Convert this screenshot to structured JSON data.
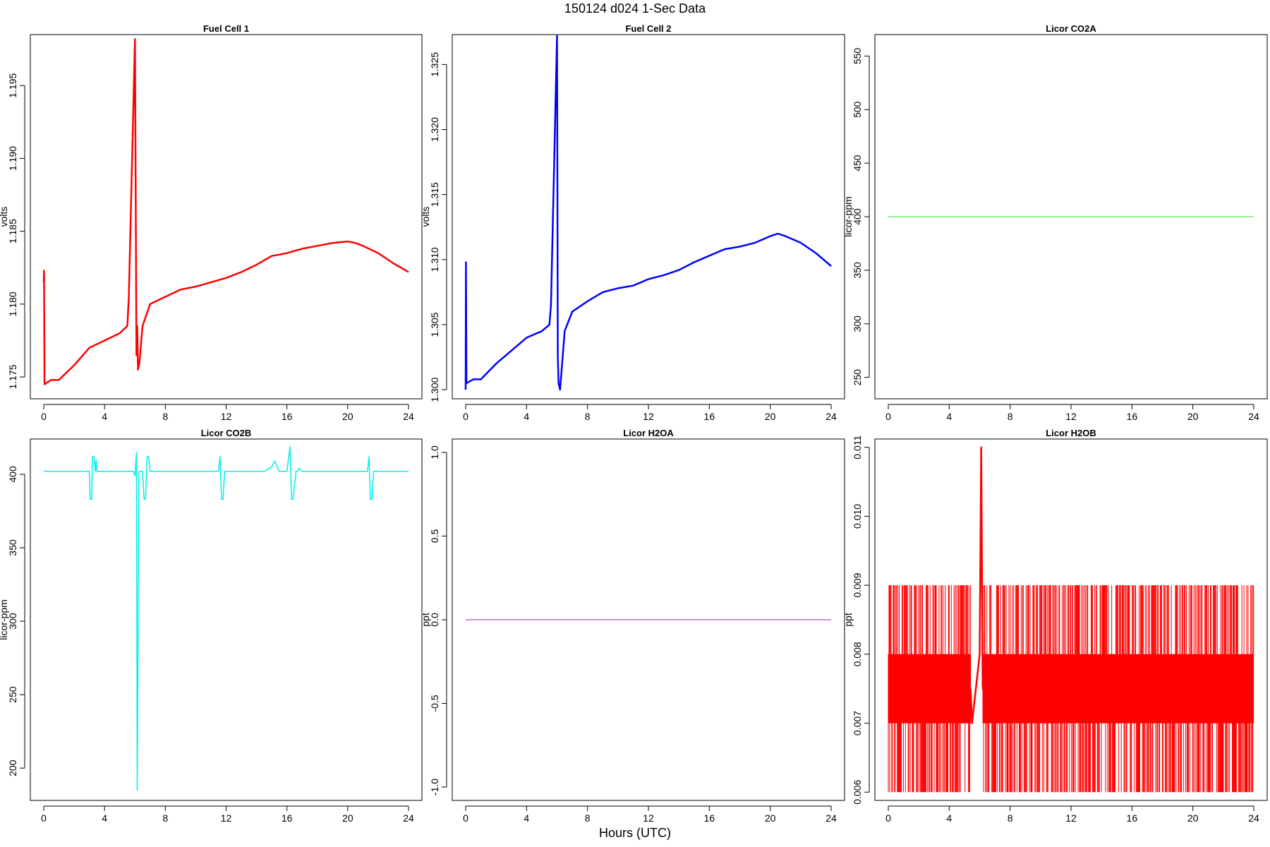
{
  "page": {
    "title": "150124   d024   1-Sec Data",
    "xlabel": "Hours (UTC)"
  },
  "chart_data": [
    {
      "type": "line",
      "title": "Fuel Cell 1",
      "ylabel": "volts",
      "xlim": [
        0,
        24
      ],
      "ylim": [
        1.1735,
        1.1985
      ],
      "x_ticks": [
        0,
        4,
        8,
        12,
        16,
        20,
        24
      ],
      "y_ticks": [
        1.175,
        1.18,
        1.185,
        1.19,
        1.195
      ],
      "color": "#ff0000",
      "x": [
        0,
        0.02,
        0.05,
        0.5,
        1,
        2,
        3,
        4,
        5,
        5.5,
        5.6,
        6.0,
        6.1,
        6.15,
        6.2,
        6.3,
        6.5,
        7,
        8,
        9,
        10,
        11,
        12,
        13,
        14,
        15,
        16,
        17,
        18,
        19,
        20,
        20.5,
        21,
        22,
        23,
        24
      ],
      "y": [
        1.1815,
        1.1823,
        1.1745,
        1.1748,
        1.1748,
        1.1758,
        1.177,
        1.1775,
        1.178,
        1.1785,
        1.1805,
        1.1982,
        1.1765,
        1.1785,
        1.1755,
        1.176,
        1.1785,
        1.18,
        1.1805,
        1.181,
        1.1812,
        1.1815,
        1.1818,
        1.1822,
        1.1827,
        1.1833,
        1.1835,
        1.1838,
        1.184,
        1.1842,
        1.1843,
        1.1842,
        1.184,
        1.1835,
        1.1828,
        1.1822
      ]
    },
    {
      "type": "line",
      "title": "Fuel Cell 2",
      "ylabel": "volts",
      "xlim": [
        0,
        24
      ],
      "ylim": [
        1.2993,
        1.3273
      ],
      "x_ticks": [
        0,
        4,
        8,
        12,
        16,
        20,
        24
      ],
      "y_ticks": [
        1.3,
        1.305,
        1.31,
        1.315,
        1.32,
        1.325
      ],
      "color": "#0000ff",
      "x": [
        0,
        0.02,
        0.05,
        0.5,
        1,
        2,
        3,
        4,
        5,
        5.5,
        5.6,
        6.0,
        6.05,
        6.1,
        6.2,
        6.3,
        6.5,
        7,
        8,
        9,
        10,
        11,
        12,
        13,
        14,
        15,
        16,
        17,
        18,
        19,
        20,
        20.5,
        21,
        22,
        23,
        24
      ],
      "y": [
        1.3,
        1.3098,
        1.3005,
        1.3008,
        1.3008,
        1.302,
        1.303,
        1.304,
        1.3045,
        1.305,
        1.3065,
        1.3272,
        1.3025,
        1.3005,
        1.3,
        1.3015,
        1.3045,
        1.306,
        1.3068,
        1.3075,
        1.3078,
        1.308,
        1.3085,
        1.3088,
        1.3092,
        1.3098,
        1.3103,
        1.3108,
        1.311,
        1.3113,
        1.3118,
        1.312,
        1.3118,
        1.3113,
        1.3105,
        1.3095
      ]
    },
    {
      "type": "line",
      "title": "Licor CO2A",
      "ylabel": "licor-ppm",
      "xlim": [
        0,
        24
      ],
      "ylim": [
        230,
        570
      ],
      "x_ticks": [
        0,
        4,
        8,
        12,
        16,
        20,
        24
      ],
      "y_ticks": [
        250,
        300,
        350,
        400,
        450,
        500,
        550
      ],
      "color": "#66ee66",
      "x": [
        0,
        24
      ],
      "y": [
        400,
        400
      ]
    },
    {
      "type": "line",
      "title": "Licor CO2B",
      "ylabel": "licor-ppm",
      "xlim": [
        0,
        24
      ],
      "ylim": [
        178,
        424
      ],
      "x_ticks": [
        0,
        4,
        8,
        12,
        16,
        20,
        24
      ],
      "y_ticks": [
        200,
        250,
        300,
        350,
        400
      ],
      "color": "#00eeee",
      "x": [
        0,
        2.9,
        3.0,
        3.05,
        3.15,
        3.2,
        3.3,
        3.4,
        3.45,
        3.5,
        5.9,
        6.0,
        6.1,
        6.15,
        6.2,
        6.25,
        6.3,
        6.4,
        6.5,
        6.6,
        6.7,
        6.8,
        6.9,
        7.0,
        11.5,
        11.6,
        11.7,
        11.8,
        11.9,
        12.0,
        14.5,
        15.0,
        15.2,
        15.5,
        16.0,
        16.2,
        16.3,
        16.4,
        16.6,
        16.7,
        16.8,
        17.0,
        21.3,
        21.4,
        21.5,
        21.6,
        21.7,
        24
      ],
      "y": [
        402,
        402,
        402,
        383,
        383,
        412,
        412,
        402,
        410,
        402,
        402,
        399,
        415,
        185,
        280,
        398,
        402,
        402,
        402,
        383,
        383,
        412,
        412,
        402,
        402,
        412,
        383,
        383,
        402,
        402,
        402,
        405,
        409,
        402,
        402,
        419,
        383,
        383,
        402,
        402,
        404,
        402,
        402,
        412,
        383,
        383,
        402,
        402
      ]
    },
    {
      "type": "line",
      "title": "Licor H2OA",
      "ylabel": "ppt",
      "xlim": [
        0,
        24
      ],
      "ylim": [
        -1.08,
        1.08
      ],
      "x_ticks": [
        0,
        4,
        8,
        12,
        16,
        20,
        24
      ],
      "y_ticks": [
        -1.0,
        -0.5,
        0.0,
        0.5,
        1.0
      ],
      "color": "#cc66cc",
      "x": [
        0,
        24
      ],
      "y": [
        0,
        0
      ]
    },
    {
      "type": "line",
      "title": "Licor H2OB",
      "ylabel": "ppt",
      "xlim": [
        0,
        24
      ],
      "ylim": [
        0.00588,
        0.01112
      ],
      "x_ticks": [
        0,
        4,
        8,
        12,
        16,
        20,
        24
      ],
      "y_ticks": [
        0.006,
        0.007,
        0.008,
        0.009,
        0.01,
        0.011
      ],
      "color": "#ff0000",
      "x": [
        0,
        5.4,
        5.5,
        6.0,
        6.1,
        6.2,
        24
      ],
      "y": [
        0.0075,
        0.0075,
        0.007,
        0.008,
        0.011,
        0.0075,
        0.0075
      ]
    }
  ]
}
